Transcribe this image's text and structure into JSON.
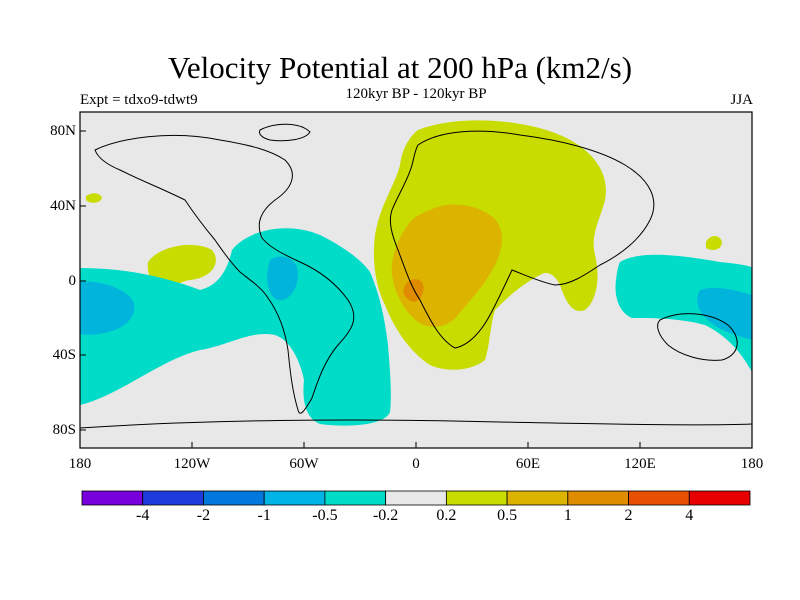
{
  "title": "Velocity Potential at 200 hPa (km2/s)",
  "experiment_label": "Expt = tdxo9-tdwt9",
  "subtitle": "120kyr BP - 120kyr BP",
  "season": "JJA",
  "map": {
    "lat_labels": [
      "80N",
      "40N",
      "0",
      "40S",
      "80S"
    ],
    "lon_labels": [
      "180",
      "120W",
      "60W",
      "0",
      "60E",
      "120E",
      "180"
    ],
    "colors": {
      "background": "#e8e8e8",
      "neg_0_5": "#00c8c8",
      "neg_0_2": "#00dcc8",
      "neg_1": "#00b4dc",
      "neg_2": "#0096dc",
      "pos_0_2": "#c8dc00",
      "pos_0_5": "#dcb400",
      "pos_1": "#e08c00"
    }
  },
  "colorbar": {
    "labels": [
      "-4",
      "-2",
      "-1",
      "-0.5",
      "-0.2",
      "0.2",
      "0.5",
      "1",
      "2",
      "4"
    ],
    "colors": [
      "#7800dc",
      "#1e3cdc",
      "#0078dc",
      "#00b4e6",
      "#00dcc8",
      "#e8e8e8",
      "#c8dc00",
      "#dcb400",
      "#e08c00",
      "#e65000",
      "#e60000"
    ]
  }
}
